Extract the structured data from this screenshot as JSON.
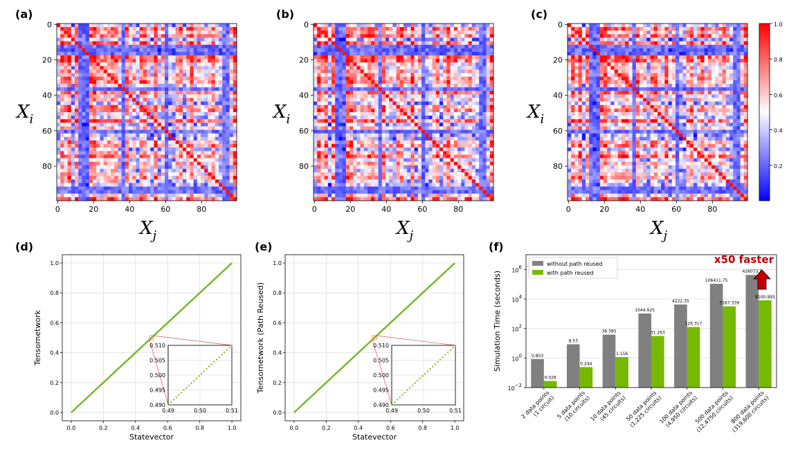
{
  "chart_data": [
    {
      "type": "heatmap",
      "panel": "(a)",
      "xlabel": "X_j",
      "ylabel": "X_i",
      "xticks": [
        "0",
        "20",
        "40",
        "60",
        "80"
      ],
      "yticks": [
        "0",
        "20",
        "40",
        "60",
        "80"
      ],
      "size": 100
    },
    {
      "type": "heatmap",
      "panel": "(b)",
      "xlabel": "X_j",
      "ylabel": "X_i",
      "xticks": [
        "0",
        "20",
        "40",
        "60",
        "80"
      ],
      "yticks": [
        "0",
        "20",
        "40",
        "60",
        "80"
      ],
      "size": 100
    },
    {
      "type": "heatmap",
      "panel": "(c)",
      "xlabel": "X_j",
      "ylabel": "X_i",
      "xticks": [
        "0",
        "20",
        "40",
        "60",
        "80"
      ],
      "yticks": [
        "0",
        "20",
        "40",
        "60",
        "80"
      ],
      "size": 100,
      "colorbar": {
        "min": 0,
        "max": 1,
        "ticks": [
          "1.0",
          "0.8",
          "0.6",
          "0.4",
          "0.2"
        ],
        "colormap": "bwr"
      }
    },
    {
      "type": "line",
      "panel": "(d)",
      "xlabel": "Statevector",
      "ylabel": "Tensornetwork",
      "xlim": [
        0,
        1
      ],
      "ylim": [
        0,
        1
      ],
      "xticks": [
        "0.0",
        "0.2",
        "0.4",
        "0.6",
        "0.8",
        "1.0"
      ],
      "yticks": [
        "0.0",
        "0.2",
        "0.4",
        "0.6",
        "0.8",
        "1.0"
      ],
      "series": [
        {
          "name": "y=x",
          "x": [
            0,
            1
          ],
          "y": [
            0,
            1
          ],
          "color": "#77b82a"
        }
      ],
      "inset": {
        "xlim": [
          0.49,
          0.51
        ],
        "ylim": [
          0.49,
          0.51
        ],
        "xticks": [
          "0.49",
          "0.50",
          "0.51"
        ],
        "yticks": [
          "0.510",
          "0.505",
          "0.500",
          "0.495",
          "0.490"
        ]
      }
    },
    {
      "type": "line",
      "panel": "(e)",
      "xlabel": "Statevector",
      "ylabel": "Tensornetwork (Path Reused)",
      "xlim": [
        0,
        1
      ],
      "ylim": [
        0,
        1
      ],
      "xticks": [
        "0.0",
        "0.2",
        "0.4",
        "0.6",
        "0.8",
        "1.0"
      ],
      "yticks": [
        "0.0",
        "0.2",
        "0.4",
        "0.6",
        "0.8",
        "1.0"
      ],
      "series": [
        {
          "name": "y=x",
          "x": [
            0,
            1
          ],
          "y": [
            0,
            1
          ],
          "color": "#77b82a"
        }
      ],
      "inset": {
        "xlim": [
          0.49,
          0.51
        ],
        "ylim": [
          0.49,
          0.51
        ],
        "xticks": [
          "0.49",
          "0.50",
          "0.51"
        ],
        "yticks": [
          "0.510",
          "0.505",
          "0.500",
          "0.495",
          "0.490"
        ]
      }
    },
    {
      "type": "bar",
      "panel": "(f)",
      "yscale": "log",
      "ylim_exp": [
        -2,
        7
      ],
      "ylabel": "Simulation Time (seconds)",
      "yticks": [
        {
          "base": "10",
          "exp": "−2"
        },
        {
          "base": "10",
          "exp": "0"
        },
        {
          "base": "10",
          "exp": "2"
        },
        {
          "base": "10",
          "exp": "4"
        },
        {
          "base": "10",
          "exp": "6"
        }
      ],
      "categories": [
        [
          "2 data points",
          "(1 circuit)"
        ],
        [
          "5 data points",
          "(10 circuits)"
        ],
        [
          "10 data points",
          "(45 circuits)"
        ],
        [
          "50 data points",
          "(1,225 circuits)"
        ],
        [
          "100 data points",
          "(4,950 circuits)"
        ],
        [
          "500 data points",
          "(12,4750 circuits)"
        ],
        [
          "800 data points",
          "(319,600 circuits)"
        ]
      ],
      "series": [
        {
          "name": "without path reused",
          "color": "#808080",
          "values": [
            0.853,
            8.53,
            38.385,
            1044.925,
            4222.35,
            106411.75,
            426073.5
          ],
          "labels": [
            "0.853",
            "8.53",
            "38.385",
            "1044.925",
            "4222.35",
            "106411.75",
            "426073.5"
          ]
        },
        {
          "name": "with path reused",
          "color": "#77b800",
          "values": [
            0.028,
            0.244,
            1.156,
            31.263,
            126.317,
            3187.339,
            8100.993
          ],
          "labels": [
            "0.028",
            "0.244",
            "1.156",
            "31.263",
            "126.317",
            "3187.339",
            "8100.993"
          ]
        }
      ],
      "annotation": "x50 faster"
    }
  ]
}
